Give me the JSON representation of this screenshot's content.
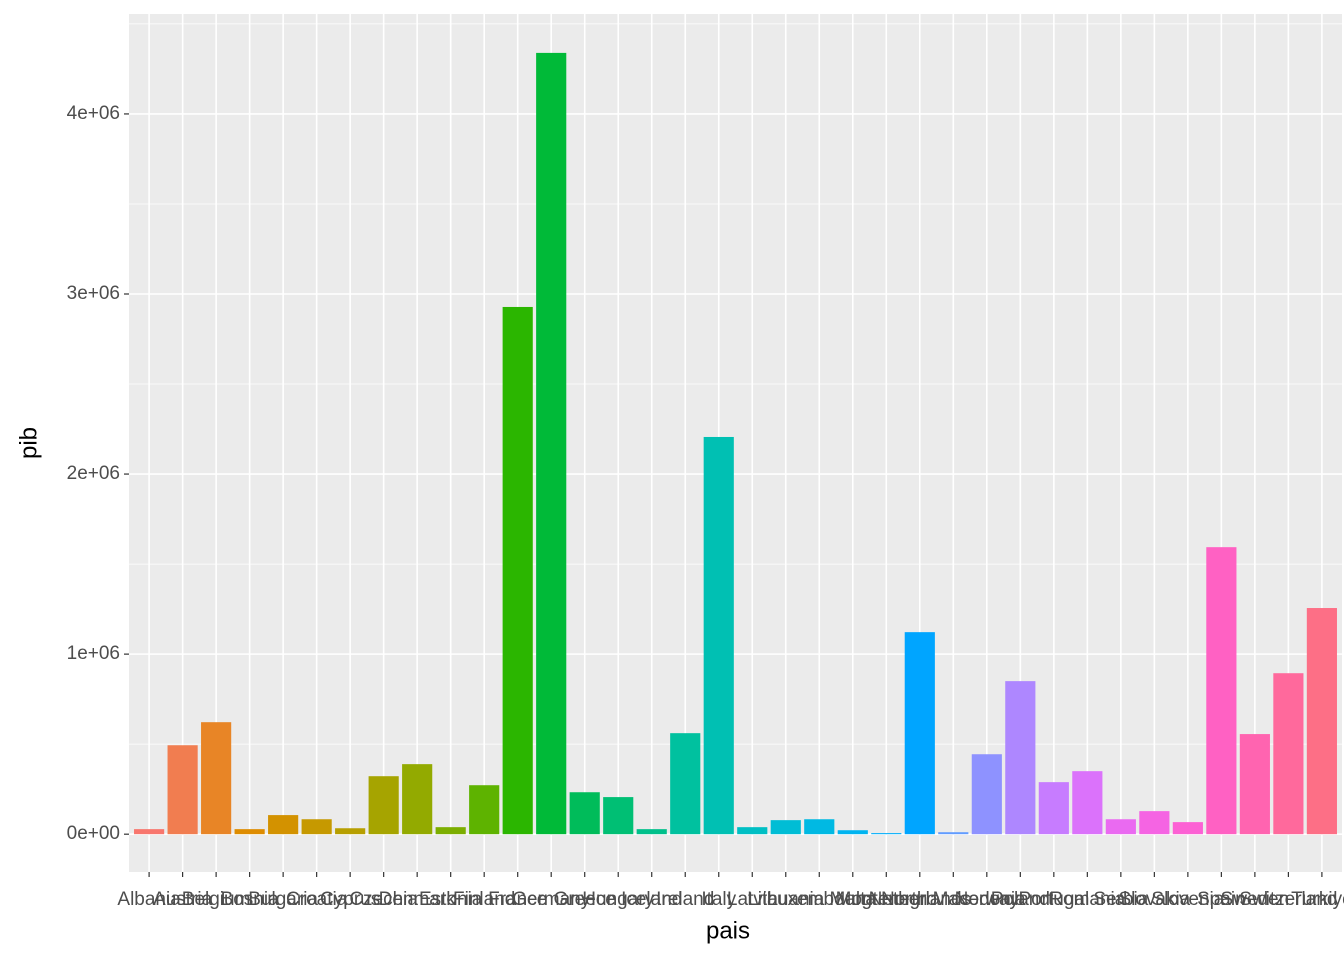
{
  "chart_data": {
    "type": "bar",
    "x_label": "pais",
    "y_label": "pib",
    "categories": [
      "Albania",
      "Austria",
      "Belgium",
      "Bosnia",
      "Bulgaria",
      "Croatia",
      "Cyprus",
      "Czechia",
      "Denmark",
      "Estonia",
      "Finland",
      "France",
      "Germany",
      "Greece",
      "Hungary",
      "Iceland",
      "Ireland",
      "Italy",
      "Latvia",
      "Lithuania",
      "Luxembourg",
      "Malta",
      "Montenegro",
      "Netherlands",
      "North Macedonia",
      "Norway",
      "Poland",
      "Portugal",
      "Romania",
      "Serbia",
      "Slovakia",
      "Slovenia",
      "Spain",
      "Sweden",
      "Switzerland",
      "Turkiye"
    ],
    "values": [
      28000,
      494000,
      622000,
      28000,
      106000,
      83000,
      33000,
      322000,
      389000,
      39000,
      272000,
      2928000,
      4339000,
      233000,
      206000,
      28000,
      561000,
      2206000,
      39000,
      78000,
      83000,
      22000,
      6000,
      1122000,
      11000,
      444000,
      850000,
      289000,
      350000,
      83000,
      128000,
      67000,
      1594000,
      556000,
      894000,
      1256000
    ],
    "palette": {
      "kind": "hue",
      "h": [
        15,
        375
      ],
      "c": 100,
      "l": 65
    },
    "ylim": [
      -210000,
      4555000
    ],
    "yticks": [
      {
        "value": 0,
        "label": "0e+00"
      },
      {
        "value": 1000000,
        "label": "1e+06"
      },
      {
        "value": 2000000,
        "label": "2e+06"
      },
      {
        "value": 3000000,
        "label": "3e+06"
      },
      {
        "value": 4000000,
        "label": "4e+06"
      }
    ],
    "y_minor_grid": [
      500000,
      1500000,
      2500000,
      3500000,
      4500000
    ],
    "grid": true
  }
}
